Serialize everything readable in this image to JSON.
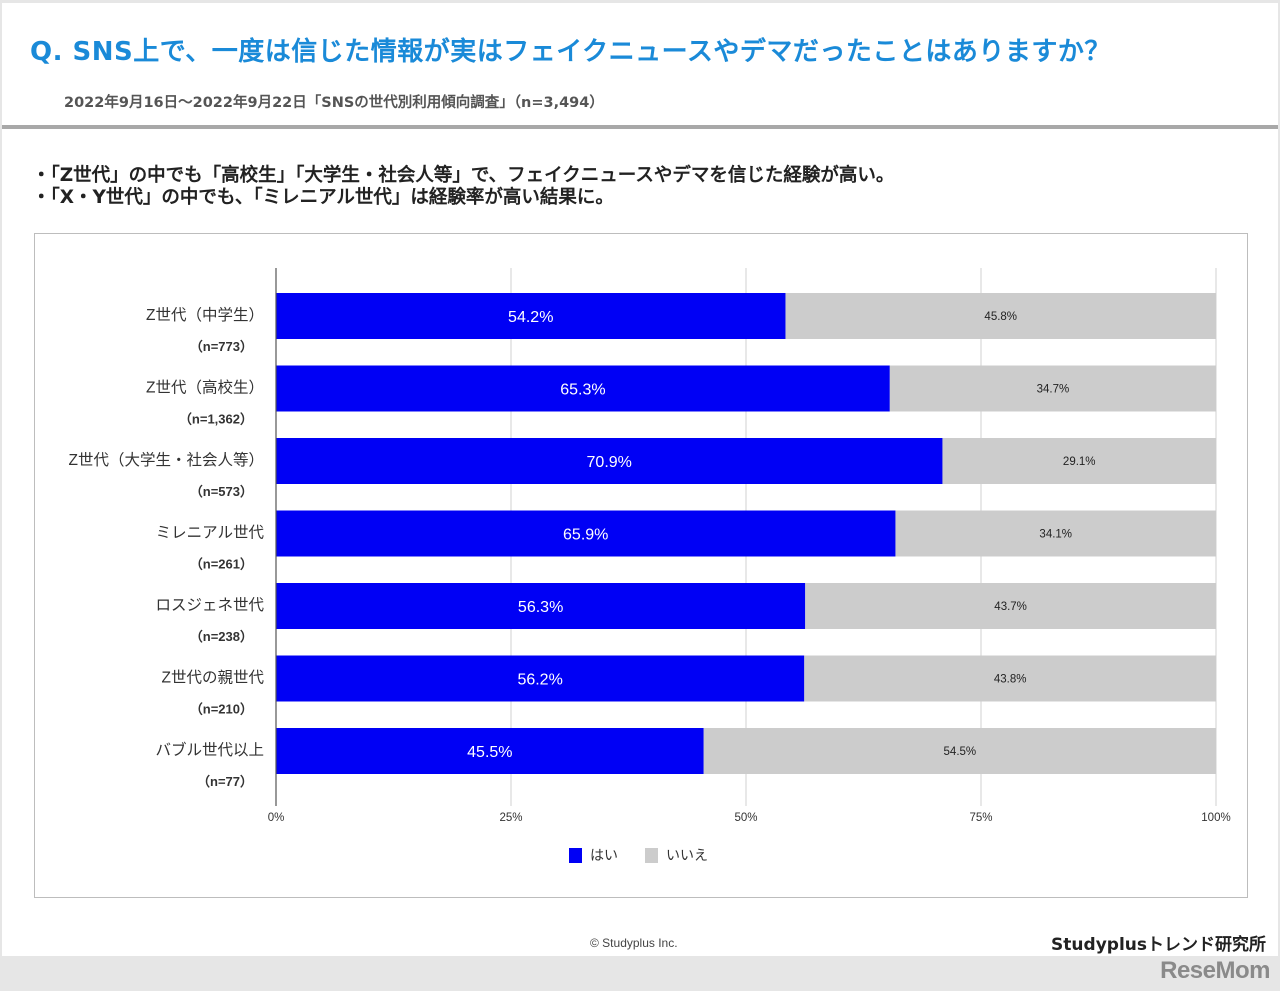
{
  "header": {
    "title": "Q. SNS上で、一度は信じた情報が実はフェイクニュースやデマだったことはありますか？",
    "subtitle": "2022年9月16日～2022年9月22日「SNSの世代別利用傾向調査」（n=3,494）"
  },
  "bullets": [
    "・「Z世代」の中でも「高校生」「大学生・社会人等」で、フェイクニュースやデマを信じた経験が高い。",
    "・「X・Y世代」の中でも、「ミレニアル世代」は経験率が高い結果に。"
  ],
  "footer": {
    "copyright": "© Studyplus Inc.",
    "brand": "Studyplusトレンド研究所",
    "watermark": "ReseMom"
  },
  "colors": {
    "yes": "#0000f5",
    "no": "#cccccc",
    "title": "#1a8ad8",
    "grid": "#d0d0d0"
  },
  "chart_data": {
    "type": "bar",
    "orientation": "horizontal",
    "stacked": true,
    "categories": [
      "Z世代（中学生）",
      "Z世代（高校生）",
      "Z世代（大学生・社会人等）",
      "ミレニアル世代",
      "ロスジェネ世代",
      "Z世代の親世代",
      "バブル世代以上"
    ],
    "sample_sizes": [
      "（n=773）",
      "（n=1,362）",
      "（n=573）",
      "（n=261）",
      "（n=238）",
      "（n=210）",
      "（n=77）"
    ],
    "series": [
      {
        "name": "はい",
        "values": [
          54.2,
          65.3,
          70.9,
          65.9,
          56.3,
          56.2,
          45.5
        ]
      },
      {
        "name": "いいえ",
        "values": [
          45.8,
          34.7,
          29.1,
          34.1,
          43.7,
          43.8,
          54.5
        ]
      }
    ],
    "xlim": [
      0,
      100
    ],
    "xticks": [
      "0%",
      "25%",
      "50%",
      "75%",
      "100%"
    ],
    "grid": true,
    "legend": "bottom",
    "value_suffix": "%"
  }
}
